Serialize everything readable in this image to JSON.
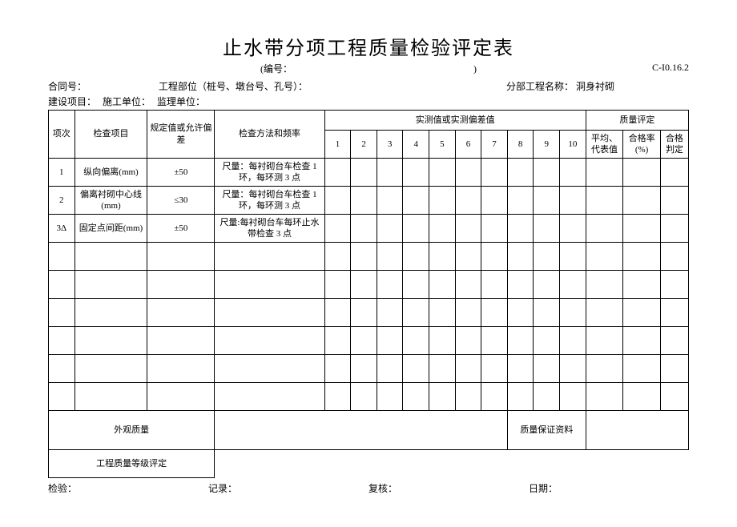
{
  "title": "止水带分项工程质量检验评定表",
  "subtitle_prefix": "(编号：",
  "subtitle_suffix": ")",
  "form_code": "C-I0.16.2",
  "meta": {
    "contract_label": "合同号：",
    "part_label": "工程部位（桩号、墩台号、孔号）：",
    "subproject_label": "分部工程名称：",
    "subproject_value": "洞身衬砌",
    "build_label": "建设项目：",
    "construct_label": "施工单位：",
    "supervise_label": "监理单位："
  },
  "headers": {
    "idx": "项次",
    "item": "检查项目",
    "spec": "规定值或允许偏差",
    "method": "检查方法和频率",
    "measured": "实测值或实测偏差值",
    "quality": "质量评定",
    "avg": "平均、代表值",
    "rate": "合格率 (%)",
    "result": "合格判定",
    "nums": [
      "1",
      "2",
      "3",
      "4",
      "5",
      "6",
      "7",
      "8",
      "9",
      "10"
    ]
  },
  "rows": [
    {
      "idx": "1",
      "item": "纵向偏离(mm)",
      "spec": "±50",
      "method": "尺量：每衬砌台车检查 1 环，每环测 3 点"
    },
    {
      "idx": "2",
      "item": "偏离衬砌中心线 (mm)",
      "spec": "≤30",
      "method": "尺量：每衬砌台车检查 1 环，每环测 3 点"
    },
    {
      "idx": "3Δ",
      "item": "固定点间距(mm)",
      "spec": "±50",
      "method": "尺量:每衬砌台车每环止水带检查 3 点"
    }
  ],
  "blank_row_count": 6,
  "footer_labels": {
    "appearance": "外观质量",
    "qa_material": "质量保证资料",
    "grade": "工程质量等级评定"
  },
  "sign": {
    "inspect": "检验：",
    "record": "记录：",
    "review": "复核：",
    "date": "日期："
  }
}
